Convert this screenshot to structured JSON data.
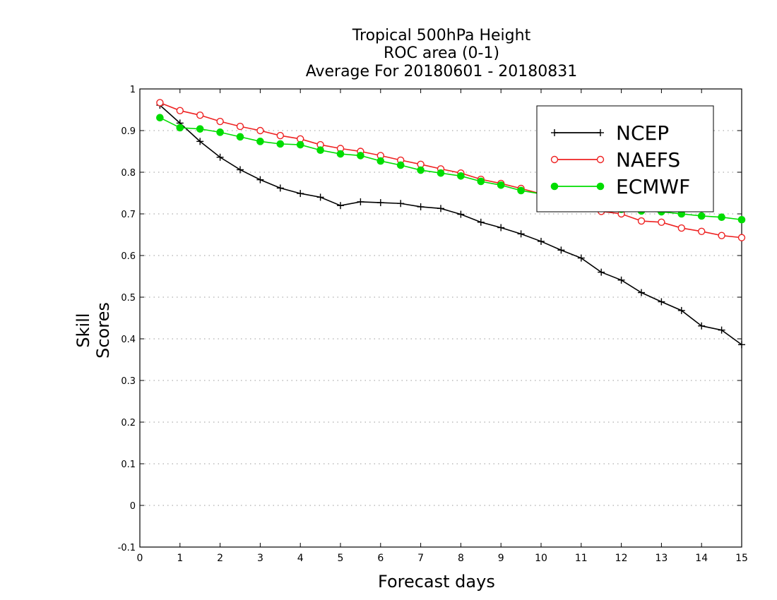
{
  "chart_data": {
    "type": "line",
    "title": "Tropical 500hPa Height",
    "subtitle": "ROC area (0-1)",
    "subtitle2": "Average For 20180601 - 20180831",
    "xlabel": "Forecast days",
    "ylabel": "Skill Scores",
    "xlim": [
      0,
      15
    ],
    "ylim": [
      -0.1,
      1
    ],
    "xticks": [
      "0",
      "1",
      "2",
      "3",
      "4",
      "5",
      "6",
      "7",
      "8",
      "9",
      "10",
      "11",
      "12",
      "13",
      "14",
      "15"
    ],
    "yticks": [
      "-0.1",
      "0",
      "0.1",
      "0.2",
      "0.3",
      "0.4",
      "0.5",
      "0.6",
      "0.7",
      "0.8",
      "0.9",
      "1"
    ],
    "grid": "horizontal-dotted",
    "legend_position": "top-right",
    "x": [
      0.5,
      1,
      1.5,
      2,
      2.5,
      3,
      3.5,
      4,
      4.5,
      5,
      5.5,
      6,
      6.5,
      7,
      7.5,
      8,
      8.5,
      9,
      9.5,
      10,
      10.5,
      11,
      11.5,
      12,
      12.5,
      13,
      13.5,
      14,
      14.5,
      15
    ],
    "series": [
      {
        "name": "NCEP",
        "color": "#000000",
        "marker": "plus",
        "values": [
          0.961,
          0.918,
          0.874,
          0.836,
          0.806,
          0.782,
          0.762,
          0.749,
          0.74,
          0.72,
          0.729,
          0.727,
          0.725,
          0.717,
          0.713,
          0.699,
          0.68,
          0.667,
          0.652,
          0.634,
          0.613,
          0.594,
          0.56,
          0.541,
          0.511,
          0.489,
          0.468,
          0.431,
          0.421,
          0.386
        ]
      },
      {
        "name": "NAEFS",
        "color": "#ee2222",
        "marker": "open-circle",
        "values": [
          0.967,
          0.948,
          0.937,
          0.922,
          0.91,
          0.9,
          0.888,
          0.88,
          0.866,
          0.857,
          0.85,
          0.84,
          0.829,
          0.819,
          0.808,
          0.798,
          0.783,
          0.773,
          0.761,
          0.748,
          0.735,
          0.721,
          0.706,
          0.7,
          0.683,
          0.68,
          0.666,
          0.658,
          0.648,
          0.643
        ]
      },
      {
        "name": "ECMWF",
        "color": "#00dd00",
        "marker": "filled-circle",
        "values": [
          0.931,
          0.907,
          0.904,
          0.896,
          0.885,
          0.874,
          0.868,
          0.866,
          0.853,
          0.844,
          0.84,
          0.827,
          0.817,
          0.805,
          0.798,
          0.791,
          0.778,
          0.769,
          0.756,
          0.748,
          0.735,
          0.724,
          0.717,
          0.711,
          0.707,
          0.705,
          0.7,
          0.695,
          0.692,
          0.686
        ]
      }
    ]
  }
}
